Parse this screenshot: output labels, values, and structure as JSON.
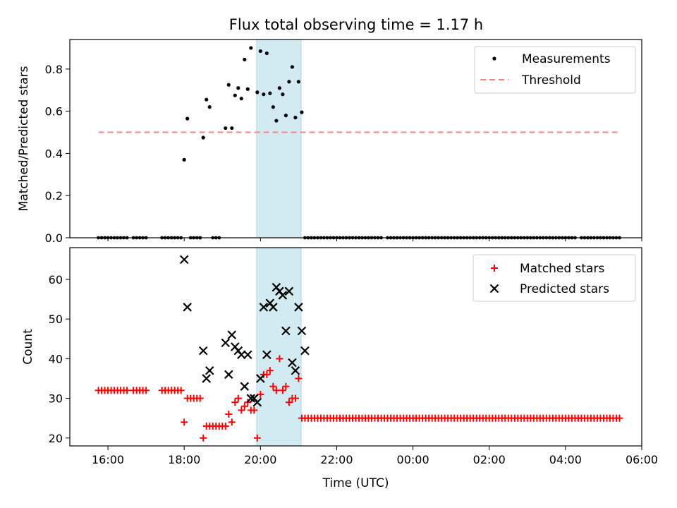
{
  "figure": {
    "title": "Flux total observing time = 1.17 h",
    "xlabel": "Time (UTC)"
  },
  "colors": {
    "measurement": "#000000",
    "threshold": "#ff8080",
    "matched": "#ff0000",
    "predicted": "#000000",
    "highlight_span": "#add8e6"
  },
  "chart_data": [
    {
      "type": "scatter",
      "ylabel": "Matched/Predicted stars",
      "xlim": [
        "15:00",
        "06:00"
      ],
      "ylim": [
        0,
        0.94
      ],
      "yticks": [
        0.0,
        0.2,
        0.4,
        0.6,
        0.8
      ],
      "ytick_labels": [
        "0.0",
        "0.2",
        "0.4",
        "0.6",
        "0.8"
      ],
      "legend": "top-right",
      "highlight_span": [
        "19:54",
        "21:04"
      ],
      "series": [
        {
          "name": "Measurements",
          "marker": "dot",
          "points": [
            [
              "18:00",
              0.37
            ],
            [
              "18:05",
              0.565
            ],
            [
              "18:30",
              0.475
            ],
            [
              "18:35",
              0.655
            ],
            [
              "18:40",
              0.62
            ],
            [
              "19:05",
              0.52
            ],
            [
              "19:10",
              0.725
            ],
            [
              "19:15",
              0.52
            ],
            [
              "19:20",
              0.675
            ],
            [
              "19:25",
              0.71
            ],
            [
              "19:30",
              0.66
            ],
            [
              "19:35",
              0.845
            ],
            [
              "19:40",
              0.705
            ],
            [
              "19:45",
              0.9
            ],
            [
              "19:55",
              0.69
            ],
            [
              "20:00",
              0.885
            ],
            [
              "20:05",
              0.68
            ],
            [
              "20:10",
              0.875
            ],
            [
              "20:15",
              0.685
            ],
            [
              "20:20",
              0.62
            ],
            [
              "20:25",
              0.555
            ],
            [
              "20:30",
              0.71
            ],
            [
              "20:35",
              0.68
            ],
            [
              "20:40",
              0.58
            ],
            [
              "20:45",
              0.74
            ],
            [
              "20:50",
              0.81
            ],
            [
              "20:55",
              0.57
            ],
            [
              "21:00",
              0.74
            ],
            [
              "21:05",
              0.595
            ]
          ],
          "zero_runs": [
            [
              "15:45",
              "16:30"
            ],
            [
              "16:40",
              "17:00"
            ],
            [
              "17:25",
              "17:55"
            ],
            [
              "18:10",
              "18:25"
            ],
            [
              "18:45",
              "18:55"
            ],
            [
              "21:10",
              "23:10"
            ],
            [
              "23:20",
              "04:15"
            ],
            [
              "04:25",
              "05:25"
            ]
          ],
          "zero_run_step_min": 5
        },
        {
          "name": "Threshold",
          "style": "dashed",
          "x": [
            "15:45",
            "05:25"
          ],
          "y": [
            0.5,
            0.5
          ]
        }
      ]
    },
    {
      "type": "scatter",
      "ylabel": "Count",
      "xlim": [
        "15:00",
        "06:00"
      ],
      "ylim": [
        18,
        68
      ],
      "yticks": [
        20,
        30,
        40,
        50,
        60
      ],
      "ytick_labels": [
        "20",
        "30",
        "40",
        "50",
        "60"
      ],
      "xtick_labels": [
        "16:00",
        "18:00",
        "20:00",
        "22:00",
        "00:00",
        "02:00",
        "04:00",
        "06:00"
      ],
      "legend": "top-right",
      "highlight_span": [
        "19:54",
        "21:04"
      ],
      "series": [
        {
          "name": "Matched stars",
          "marker": "plus",
          "points": [
            [
              "18:00",
              24
            ],
            [
              "18:05",
              30
            ],
            [
              "18:10",
              30
            ],
            [
              "18:15",
              30
            ],
            [
              "18:20",
              30
            ],
            [
              "18:25",
              30
            ],
            [
              "18:30",
              20
            ],
            [
              "18:35",
              23
            ],
            [
              "18:40",
              23
            ],
            [
              "18:45",
              23
            ],
            [
              "18:50",
              23
            ],
            [
              "18:55",
              23
            ],
            [
              "19:00",
              23
            ],
            [
              "19:05",
              23
            ],
            [
              "19:10",
              26
            ],
            [
              "19:15",
              24
            ],
            [
              "19:20",
              29
            ],
            [
              "19:25",
              30
            ],
            [
              "19:30",
              27
            ],
            [
              "19:35",
              28
            ],
            [
              "19:40",
              29
            ],
            [
              "19:45",
              27
            ],
            [
              "19:50",
              27
            ],
            [
              "19:55",
              20
            ],
            [
              "20:00",
              31
            ],
            [
              "20:05",
              36
            ],
            [
              "20:10",
              36
            ],
            [
              "20:15",
              37
            ],
            [
              "20:20",
              33
            ],
            [
              "20:25",
              32
            ],
            [
              "20:30",
              40
            ],
            [
              "20:35",
              32
            ],
            [
              "20:40",
              33
            ],
            [
              "20:45",
              29
            ],
            [
              "20:50",
              30
            ],
            [
              "20:55",
              30
            ],
            [
              "21:00",
              35
            ]
          ],
          "runs": [
            {
              "from": "15:45",
              "to": "16:30",
              "value": 32
            },
            {
              "from": "16:40",
              "to": "17:00",
              "value": 32
            },
            {
              "from": "17:25",
              "to": "17:55",
              "value": 32
            },
            {
              "from": "21:05",
              "to": "05:25",
              "value": 25
            }
          ],
          "run_step_min": 5
        },
        {
          "name": "Predicted stars",
          "marker": "x",
          "points": [
            [
              "18:00",
              65
            ],
            [
              "18:05",
              53
            ],
            [
              "18:30",
              42
            ],
            [
              "18:35",
              35
            ],
            [
              "18:40",
              37
            ],
            [
              "19:05",
              44
            ],
            [
              "19:10",
              36
            ],
            [
              "19:15",
              46
            ],
            [
              "19:20",
              43
            ],
            [
              "19:25",
              42
            ],
            [
              "19:30",
              41
            ],
            [
              "19:35",
              33
            ],
            [
              "19:40",
              41
            ],
            [
              "19:45",
              30
            ],
            [
              "19:50",
              30
            ],
            [
              "19:55",
              29
            ],
            [
              "20:00",
              35
            ],
            [
              "20:05",
              53
            ],
            [
              "20:10",
              41
            ],
            [
              "20:15",
              54
            ],
            [
              "20:20",
              53
            ],
            [
              "20:25",
              58
            ],
            [
              "20:30",
              57
            ],
            [
              "20:35",
              56
            ],
            [
              "20:40",
              47
            ],
            [
              "20:45",
              57
            ],
            [
              "20:50",
              39
            ],
            [
              "20:55",
              37
            ],
            [
              "21:00",
              53
            ],
            [
              "21:05",
              47
            ],
            [
              "21:10",
              42
            ]
          ]
        }
      ]
    }
  ]
}
